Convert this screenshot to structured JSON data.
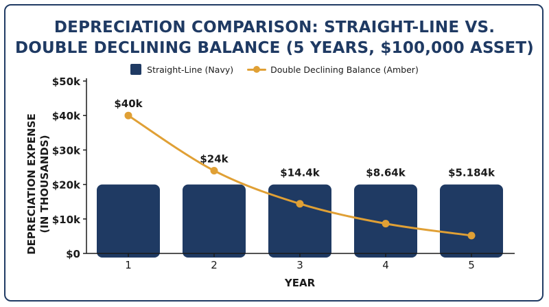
{
  "title_line1": "DEPRECIATION COMPARISON: STRAIGHT-LINE VS.",
  "title_line2": "DOUBLE DECLINING BALANCE (5 YEARS, $100,000 ASSET)",
  "colors": {
    "navy": "#1f3a63",
    "amber": "#e0a035",
    "axis": "#1a1a1a"
  },
  "chart_data": {
    "type": "bar",
    "categories": [
      "1",
      "2",
      "3",
      "4",
      "5"
    ],
    "series": [
      {
        "name": "Straight-Line (Navy)",
        "type": "bar",
        "values": [
          20,
          20,
          20,
          20,
          20
        ]
      },
      {
        "name": "Double Declining Balance (Amber)",
        "type": "line",
        "values": [
          40,
          24,
          14.4,
          8.64,
          5.184
        ]
      }
    ],
    "data_labels": [
      "$40k",
      "$24k",
      "$14.4k",
      "$8.64k",
      "$5.184k"
    ],
    "yticks": [
      0,
      10,
      20,
      30,
      40,
      50
    ],
    "ytick_labels": [
      "$0",
      "$10k",
      "$20k",
      "$30k",
      "$40k",
      "$50k"
    ],
    "ylim": [
      0,
      50
    ],
    "xlabel": "YEAR",
    "ylabel_line1": "DEPRECIATION EXPENSE",
    "ylabel_line2": "(IN THOUSANDS)",
    "legend_position": "top-center",
    "grid": false
  }
}
